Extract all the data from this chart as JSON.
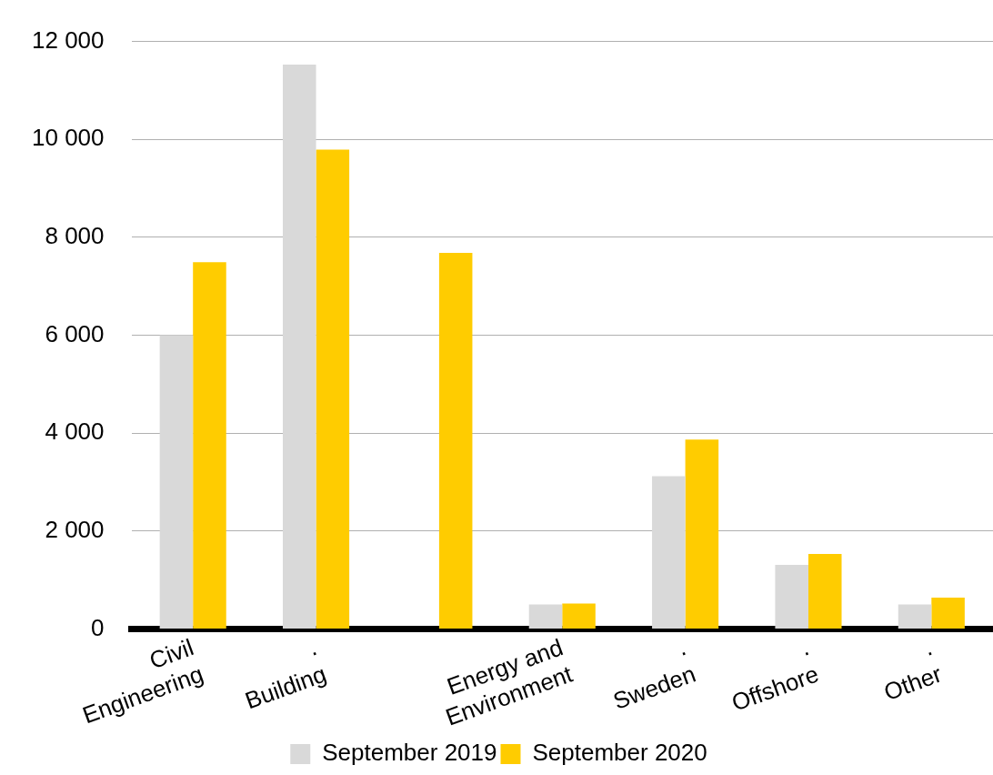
{
  "chart_data": {
    "type": "bar",
    "categories": [
      "Civil\nEngineering",
      ".\nBuilding",
      null,
      "Energy and\nEnvironment",
      ".\nSweden",
      ".\nOffshore",
      ".\nOther"
    ],
    "series": [
      {
        "name": "September 2019",
        "color": "#d9d9d9",
        "values": [
          6000,
          11530,
          null,
          500,
          3120,
          1310,
          500
        ]
      },
      {
        "name": "September 2020",
        "color": "#ffcc00",
        "values": [
          7490,
          9790,
          7680,
          520,
          3870,
          1530,
          640
        ]
      }
    ],
    "ylim": [
      0,
      12000
    ],
    "yticks": [
      {
        "value": 0,
        "label": "0"
      },
      {
        "value": 2000,
        "label": "2 000"
      },
      {
        "value": 4000,
        "label": "4 000"
      },
      {
        "value": 6000,
        "label": "6 000"
      },
      {
        "value": 8000,
        "label": "8 000"
      },
      {
        "value": 10000,
        "label": "10 000"
      },
      {
        "value": 12000,
        "label": "12 000"
      }
    ],
    "grid": "y",
    "legend": "bottom"
  }
}
